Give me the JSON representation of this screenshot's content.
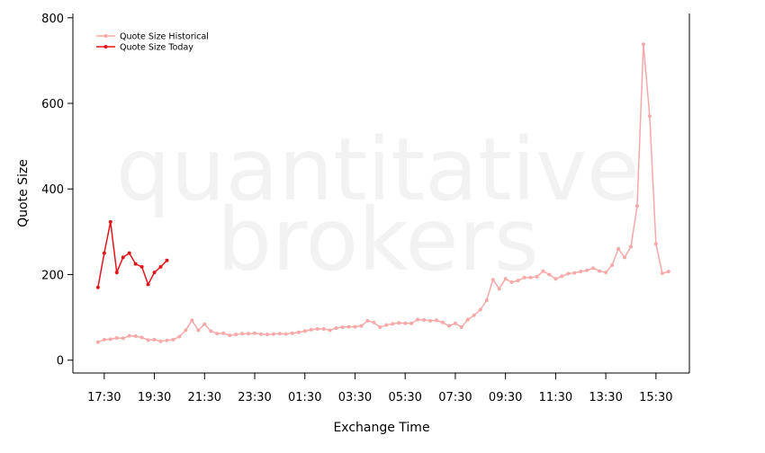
{
  "chart_data": {
    "type": "line",
    "watermark": [
      "quantitative",
      "brokers"
    ],
    "x_label": "Exchange Time",
    "y_label": "Quote Size",
    "xlim": [
      "16:15",
      "16:50"
    ],
    "ylim": [
      -30,
      810
    ],
    "xticks": [
      "17:30",
      "19:30",
      "21:30",
      "23:30",
      "01:30",
      "03:30",
      "05:30",
      "07:30",
      "09:30",
      "11:30",
      "13:30",
      "15:30"
    ],
    "yticks": [
      0,
      200,
      400,
      600,
      800
    ],
    "legend": "top-left",
    "series": [
      {
        "name": "Quote Size Historical",
        "color": "#f7a8a8",
        "x": [
          "17:15",
          "17:30",
          "17:45",
          "18:00",
          "18:15",
          "18:30",
          "18:45",
          "19:00",
          "19:15",
          "19:30",
          "19:45",
          "20:00",
          "20:15",
          "20:30",
          "20:45",
          "21:00",
          "21:15",
          "21:30",
          "21:45",
          "22:00",
          "22:15",
          "22:30",
          "22:45",
          "23:00",
          "23:15",
          "23:30",
          "23:45",
          "00:00",
          "00:15",
          "00:30",
          "00:45",
          "01:00",
          "01:15",
          "01:30",
          "01:45",
          "02:00",
          "02:15",
          "02:30",
          "02:45",
          "03:00",
          "03:15",
          "03:30",
          "03:45",
          "04:00",
          "04:15",
          "04:30",
          "04:45",
          "05:00",
          "05:15",
          "05:30",
          "05:45",
          "06:00",
          "06:15",
          "06:30",
          "06:45",
          "07:00",
          "07:15",
          "07:30",
          "07:45",
          "08:00",
          "08:15",
          "08:30",
          "08:45",
          "09:00",
          "09:15",
          "09:30",
          "09:45",
          "10:00",
          "10:15",
          "10:30",
          "10:45",
          "11:00",
          "11:15",
          "11:30",
          "11:45",
          "12:00",
          "12:15",
          "12:30",
          "12:45",
          "13:00",
          "13:15",
          "13:30",
          "13:45",
          "14:00",
          "14:15",
          "14:30",
          "14:45",
          "15:00",
          "15:15",
          "15:30",
          "15:45",
          "16:00"
        ],
        "values": [
          42,
          48,
          49,
          52,
          51,
          57,
          56,
          53,
          47,
          48,
          44,
          46,
          48,
          55,
          70,
          93,
          70,
          84,
          68,
          62,
          63,
          58,
          60,
          62,
          62,
          63,
          61,
          60,
          61,
          62,
          61,
          63,
          65,
          68,
          71,
          73,
          73,
          70,
          75,
          77,
          78,
          78,
          80,
          92,
          88,
          77,
          82,
          85,
          87,
          86,
          86,
          95,
          94,
          92,
          93,
          88,
          80,
          86,
          77,
          95,
          105,
          118,
          140,
          188,
          167,
          190,
          182,
          186,
          193,
          193,
          195,
          208,
          200,
          190,
          196,
          202,
          204,
          207,
          210,
          215,
          208,
          205,
          222,
          260,
          240,
          265,
          360,
          738,
          570,
          272,
          203,
          207
        ]
      },
      {
        "name": "Quote Size Today",
        "color": "#e0161b",
        "x": [
          "17:15",
          "17:30",
          "17:45",
          "18:00",
          "18:15",
          "18:30",
          "18:45",
          "19:00",
          "19:15",
          "19:30",
          "19:45",
          "20:00"
        ],
        "values": [
          170,
          250,
          323,
          205,
          240,
          250,
          225,
          218,
          177,
          205,
          218,
          233
        ]
      }
    ]
  }
}
